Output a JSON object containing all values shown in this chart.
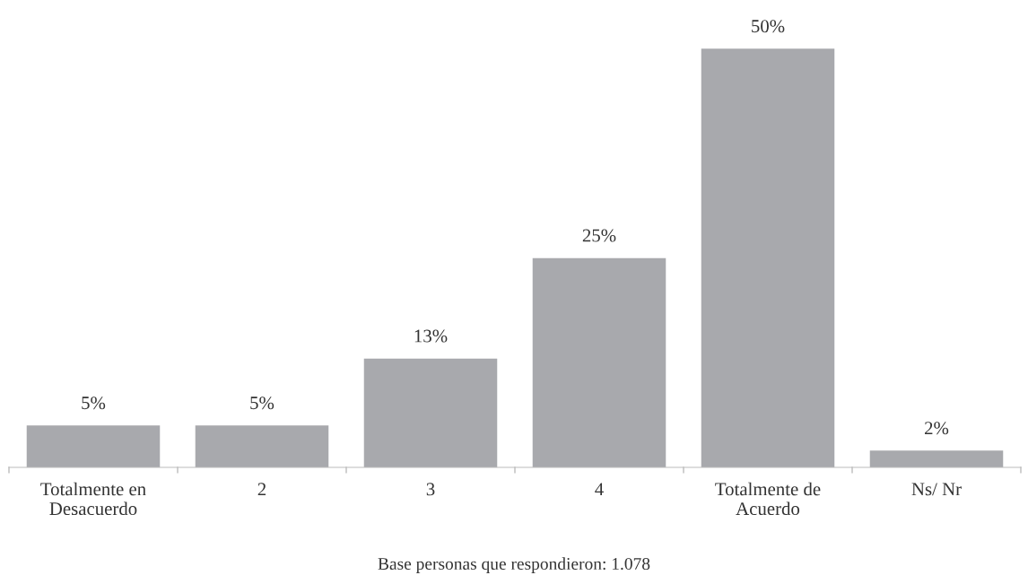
{
  "chart_data": {
    "type": "bar",
    "categories": [
      "Totalmente en\nDesacuerdo",
      "2",
      "3",
      "4",
      "Totalmente de\nAcuerdo",
      "Ns/ Nr"
    ],
    "values": [
      5,
      5,
      13,
      25,
      50,
      2
    ],
    "value_labels": [
      "5%",
      "5%",
      "13%",
      "25%",
      "50%",
      "2%"
    ],
    "color": "#a8a9ad",
    "annotations": [
      "Base personas que respondieron: 1.078"
    ],
    "grid": false,
    "legend": false
  }
}
